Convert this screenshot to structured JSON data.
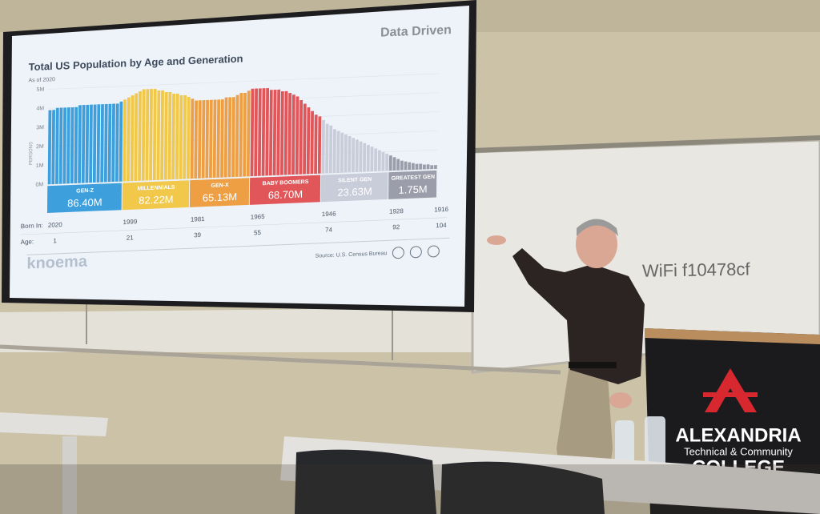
{
  "slide": {
    "brand": "Data Driven",
    "title": "Total US Population by Age and Generation",
    "subtitle": "As of 2020",
    "y_label": "PERSONS",
    "ylim": [
      0,
      5
    ],
    "yticks": [
      {
        "value": 0,
        "label": "0M"
      },
      {
        "value": 1,
        "label": "1M"
      },
      {
        "value": 2,
        "label": "2M"
      },
      {
        "value": 3,
        "label": "3M"
      },
      {
        "value": 4,
        "label": "4M"
      },
      {
        "value": 5,
        "label": "5M"
      }
    ],
    "values": [
      3.9,
      3.9,
      4.0,
      4.0,
      4.0,
      4.0,
      4.0,
      4.0,
      4.1,
      4.1,
      4.1,
      4.1,
      4.1,
      4.1,
      4.1,
      4.1,
      4.1,
      4.1,
      4.1,
      4.2,
      4.3,
      4.4,
      4.5,
      4.6,
      4.7,
      4.8,
      4.8,
      4.8,
      4.8,
      4.7,
      4.7,
      4.6,
      4.6,
      4.5,
      4.5,
      4.4,
      4.4,
      4.3,
      4.2,
      4.1,
      4.1,
      4.1,
      4.1,
      4.1,
      4.1,
      4.1,
      4.1,
      4.2,
      4.2,
      4.2,
      4.3,
      4.4,
      4.4,
      4.5,
      4.6,
      4.6,
      4.6,
      4.6,
      4.6,
      4.5,
      4.5,
      4.5,
      4.4,
      4.4,
      4.3,
      4.2,
      4.1,
      3.9,
      3.7,
      3.5,
      3.3,
      3.1,
      3.0,
      2.8,
      2.6,
      2.5,
      2.3,
      2.2,
      2.1,
      2.0,
      1.9,
      1.8,
      1.7,
      1.6,
      1.5,
      1.4,
      1.3,
      1.2,
      1.1,
      1.0,
      0.9,
      0.8,
      0.7,
      0.6,
      0.5,
      0.45,
      0.4,
      0.35,
      0.3,
      0.3,
      0.25,
      0.25,
      0.2,
      0.2
    ],
    "generations": [
      {
        "name": "GEN-Z",
        "total": {
          "value": 86.4,
          "label": "86.40M"
        },
        "color": "#3d9fdc"
      },
      {
        "name": "MILLENNIALS",
        "total": {
          "value": 82.22,
          "label": "82.22M"
        },
        "color": "#f1c84a"
      },
      {
        "name": "GEN-X",
        "total": {
          "value": 65.13,
          "label": "65.13M"
        },
        "color": "#ee9f43"
      },
      {
        "name": "BABY BOOMERS",
        "total": {
          "value": 68.7,
          "label": "68.70M"
        },
        "color": "#e05659"
      },
      {
        "name": "SILENT GEN",
        "total": {
          "value": 23.63,
          "label": "23.63M"
        },
        "color": "#c9ccd9"
      },
      {
        "name": "GREATEST GEN",
        "total": {
          "value": 1.75,
          "label": "1.75M"
        },
        "color": "#9b9daa"
      }
    ],
    "born_in_label": "Born In:",
    "born_in": [
      2020,
      1999,
      1981,
      1965,
      1946,
      1928,
      1916
    ],
    "age_label": "Age:",
    "ages": [
      1,
      21,
      39,
      55,
      74,
      92,
      104
    ],
    "logo": "knoema",
    "source": "Source: U.S. Census Bureau"
  },
  "whiteboard": {
    "text": "WiFi f10478cf"
  },
  "podium": {
    "name": "ALEXANDRIA",
    "subtitle": "Technical & Community",
    "college": "COLLEGE"
  }
}
